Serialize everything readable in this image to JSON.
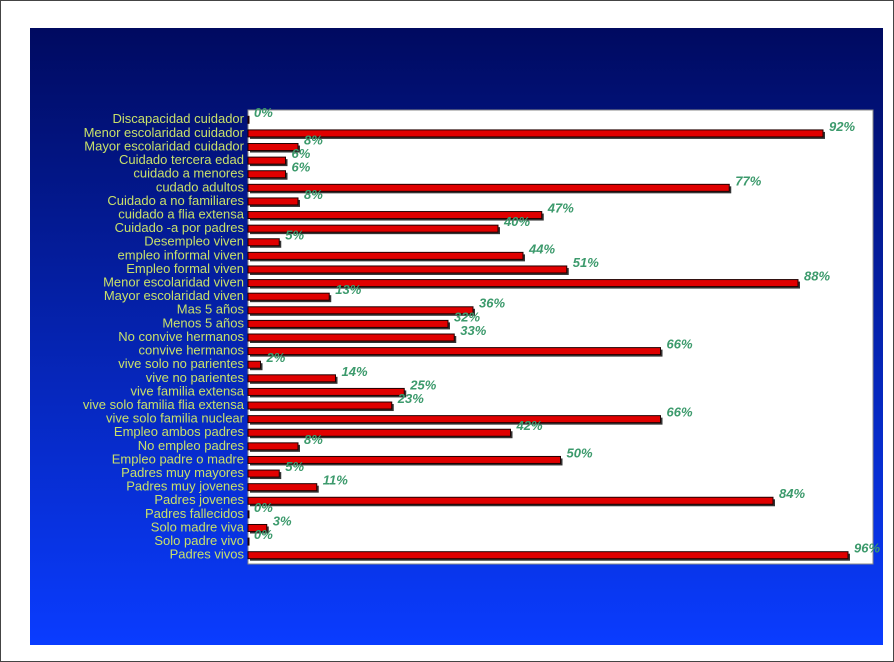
{
  "chart_data": {
    "type": "barh",
    "categories": [
      "Discapacidad cuidador",
      "Menor escolaridad cuidador",
      "Mayor escolaridad cuidador",
      "Cuidado tercera edad",
      "cuidado a menores",
      "cudado adultos",
      "Cuidado a no familiares",
      "cuidado a flia extensa",
      "Cuidado -a por padres",
      "Desempleo viven",
      "empleo informal viven",
      "Empleo formal viven",
      "Menor escolaridad viven",
      "Mayor escolaridad viven",
      "Mas 5 años",
      "Menos 5 años",
      "No convive hermanos",
      "convive hermanos",
      "vive solo no parientes",
      "vive no parientes",
      "vive familia extensa",
      "vive solo familia flia extensa",
      "vive solo familia nuclear",
      "Empleo ambos padres",
      "No empleo padres",
      "Empleo padre o madre",
      "Padres muy mayores",
      "Padres muy jovenes",
      "Padres jovenes",
      "Padres fallecidos",
      "Solo madre viva",
      "Solo padre vivo",
      "Padres vivos"
    ],
    "values": [
      0,
      92,
      8,
      6,
      6,
      77,
      8,
      47,
      40,
      5,
      44,
      51,
      88,
      13,
      36,
      32,
      33,
      66,
      2,
      14,
      25,
      23,
      66,
      42,
      8,
      50,
      5,
      11,
      84,
      0,
      3,
      0,
      96
    ],
    "value_labels": [
      "0%",
      "92%",
      "8%",
      "6%",
      "6%",
      "77%",
      "8%",
      "47%",
      "40%",
      "5%",
      "44%",
      "51%",
      "88%",
      "13%",
      "36%",
      "32%",
      "33%",
      "66%",
      "2%",
      "14%",
      "25%",
      "23%",
      "66%",
      "42%",
      "8%",
      "50%",
      "5%",
      "11%",
      "84%",
      "0%",
      "3%",
      "0%",
      "96%"
    ],
    "color": "#e00000",
    "xlim": [
      0,
      100
    ]
  }
}
